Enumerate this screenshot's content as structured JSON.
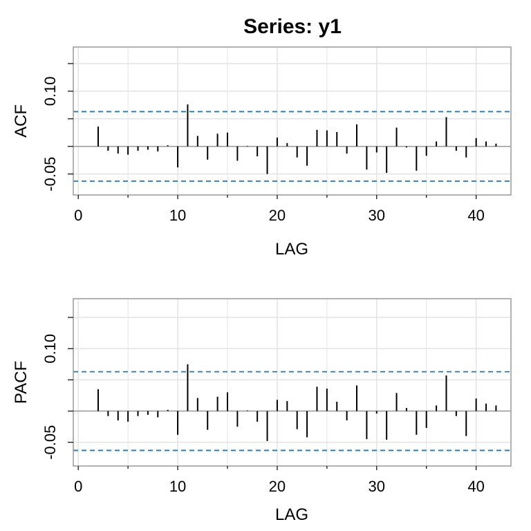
{
  "title": "Series:  y1",
  "colors": {
    "bars": "#000000",
    "confidence_band": "#1f77b4",
    "grid": "#e3e3e3",
    "frame": "#999999",
    "zero_line": "#999999"
  },
  "chart_data": [
    {
      "type": "bar",
      "name": "acf",
      "ylabel": "ACF",
      "xlabel": "LAG",
      "xlim": [
        -0.5,
        43.5
      ],
      "ylim": [
        -0.088,
        0.18
      ],
      "xticks": [
        0,
        10,
        20,
        30,
        40
      ],
      "xtick_labels": [
        "0",
        "10",
        "20",
        "30",
        "40"
      ],
      "yticks": [
        -0.05,
        0.1
      ],
      "ytick_labels": [
        "-0.05",
        "0.10"
      ],
      "minor_yticks": [
        -0.05,
        0.0,
        0.05,
        0.1,
        0.15
      ],
      "grid": true,
      "confidence_band": [
        -0.063,
        0.063
      ],
      "lags": [
        2,
        3,
        4,
        5,
        6,
        7,
        8,
        9,
        10,
        11,
        12,
        13,
        14,
        15,
        16,
        17,
        18,
        19,
        20,
        21,
        22,
        23,
        24,
        25,
        26,
        27,
        28,
        29,
        30,
        31,
        32,
        33,
        34,
        35,
        36,
        37,
        38,
        39,
        40,
        41,
        42
      ],
      "values": [
        0.036,
        -0.008,
        -0.013,
        -0.015,
        -0.008,
        -0.006,
        -0.009,
        0.002,
        -0.038,
        0.076,
        0.019,
        -0.024,
        0.023,
        0.025,
        -0.026,
        0.001,
        -0.018,
        -0.05,
        0.016,
        0.006,
        -0.02,
        -0.035,
        0.03,
        0.029,
        0.026,
        -0.013,
        0.04,
        -0.042,
        -0.011,
        -0.048,
        0.034,
        -0.002,
        -0.044,
        -0.017,
        0.009,
        0.053,
        -0.008,
        -0.02,
        0.015,
        0.009,
        0.005
      ]
    },
    {
      "type": "bar",
      "name": "pacf",
      "ylabel": "PACF",
      "xlabel": "LAG",
      "xlim": [
        -0.5,
        43.5
      ],
      "ylim": [
        -0.088,
        0.18
      ],
      "xticks": [
        0,
        10,
        20,
        30,
        40
      ],
      "xtick_labels": [
        "0",
        "10",
        "20",
        "30",
        "40"
      ],
      "yticks": [
        -0.05,
        0.1
      ],
      "ytick_labels": [
        "-0.05",
        "0.10"
      ],
      "minor_yticks": [
        -0.05,
        0.0,
        0.05,
        0.1,
        0.15
      ],
      "grid": true,
      "confidence_band": [
        -0.063,
        0.063
      ],
      "lags": [
        2,
        3,
        4,
        5,
        6,
        7,
        8,
        9,
        10,
        11,
        12,
        13,
        14,
        15,
        16,
        17,
        18,
        19,
        20,
        21,
        22,
        23,
        24,
        25,
        26,
        27,
        28,
        29,
        30,
        31,
        32,
        33,
        34,
        35,
        36,
        37,
        38,
        39,
        40,
        41,
        42
      ],
      "values": [
        0.035,
        -0.008,
        -0.015,
        -0.017,
        -0.008,
        -0.006,
        -0.01,
        0.002,
        -0.038,
        0.075,
        0.021,
        -0.03,
        0.023,
        0.03,
        -0.025,
        0.001,
        -0.017,
        -0.048,
        0.018,
        0.016,
        -0.029,
        -0.042,
        0.039,
        0.036,
        0.015,
        -0.015,
        0.041,
        -0.045,
        -0.004,
        -0.046,
        0.029,
        0.005,
        -0.038,
        -0.027,
        0.009,
        0.057,
        -0.008,
        -0.04,
        0.02,
        0.012,
        0.009
      ]
    }
  ]
}
